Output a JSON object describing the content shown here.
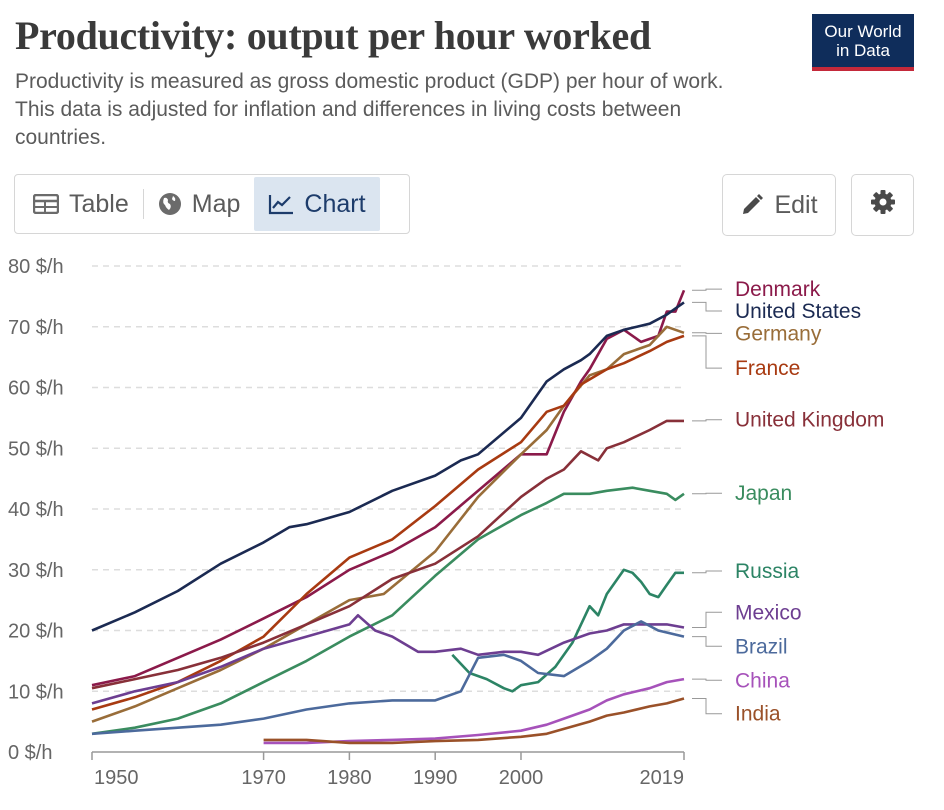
{
  "header": {
    "title": "Productivity: output per hour worked",
    "subtitle": "Productivity is measured as gross domestic product (GDP) per hour of work. This data is adjusted for inflation and differences in living costs between countries.",
    "logo_line1": "Our World",
    "logo_line2": "in Data"
  },
  "tabs": [
    {
      "label": "Table",
      "icon": "table-icon",
      "active": false
    },
    {
      "label": "Map",
      "icon": "globe-icon",
      "active": false
    },
    {
      "label": "Chart",
      "icon": "line-chart-icon",
      "active": true
    }
  ],
  "actions": {
    "edit_label": "Edit",
    "edit_icon": "pencil-icon",
    "settings_icon": "gear-icon"
  },
  "chart_data": {
    "type": "line",
    "ylim": [
      0,
      80
    ],
    "xlim": [
      1950,
      2019
    ],
    "yticks": [
      0,
      10,
      20,
      30,
      40,
      50,
      60,
      70,
      80
    ],
    "ytick_labels": [
      "0 $/h",
      "10 $/h",
      "20 $/h",
      "30 $/h",
      "40 $/h",
      "50 $/h",
      "60 $/h",
      "70 $/h",
      "80 $/h"
    ],
    "xtick_labels": [
      "1950",
      "1970",
      "1980",
      "1990",
      "2000",
      "2019"
    ],
    "xticks": [
      1950,
      1970,
      1980,
      1990,
      2000,
      2019
    ],
    "grid": "horizontal dashed",
    "legend": "line-end labels on right",
    "series": [
      {
        "name": "Denmark",
        "color": "#8b1a4a",
        "label_y": 76.2,
        "points": [
          [
            1950,
            11
          ],
          [
            1955,
            12.5
          ],
          [
            1960,
            15.5
          ],
          [
            1965,
            18.5
          ],
          [
            1970,
            22
          ],
          [
            1975,
            25.5
          ],
          [
            1980,
            30
          ],
          [
            1985,
            33
          ],
          [
            1990,
            37
          ],
          [
            1995,
            43
          ],
          [
            2000,
            49
          ],
          [
            2003,
            49
          ],
          [
            2005,
            56
          ],
          [
            2007,
            61
          ],
          [
            2008,
            63
          ],
          [
            2010,
            68
          ],
          [
            2012,
            69.5
          ],
          [
            2014,
            67.5
          ],
          [
            2016,
            68.5
          ],
          [
            2017,
            72.5
          ],
          [
            2018,
            72.5
          ],
          [
            2019,
            76
          ]
        ]
      },
      {
        "name": "United States",
        "color": "#1b2a52",
        "label_y": 72.6,
        "points": [
          [
            1950,
            20
          ],
          [
            1955,
            23
          ],
          [
            1960,
            26.5
          ],
          [
            1965,
            31
          ],
          [
            1970,
            34.5
          ],
          [
            1973,
            37
          ],
          [
            1975,
            37.5
          ],
          [
            1980,
            39.5
          ],
          [
            1985,
            43
          ],
          [
            1990,
            45.5
          ],
          [
            1993,
            48
          ],
          [
            1995,
            49
          ],
          [
            2000,
            55
          ],
          [
            2003,
            61
          ],
          [
            2005,
            63
          ],
          [
            2007,
            64.5
          ],
          [
            2008,
            65.5
          ],
          [
            2010,
            68.5
          ],
          [
            2012,
            69.5
          ],
          [
            2015,
            70.5
          ],
          [
            2017,
            72
          ],
          [
            2019,
            74
          ]
        ]
      },
      {
        "name": "Germany",
        "color": "#996d39",
        "label_y": 68.9,
        "points": [
          [
            1950,
            5
          ],
          [
            1955,
            7.5
          ],
          [
            1960,
            10.5
          ],
          [
            1965,
            13.5
          ],
          [
            1970,
            17
          ],
          [
            1975,
            21
          ],
          [
            1980,
            25
          ],
          [
            1984,
            26
          ],
          [
            1990,
            33
          ],
          [
            1995,
            42
          ],
          [
            2000,
            49
          ],
          [
            2003,
            53
          ],
          [
            2005,
            57
          ],
          [
            2008,
            62
          ],
          [
            2010,
            63
          ],
          [
            2012,
            65.5
          ],
          [
            2015,
            67
          ],
          [
            2017,
            70
          ],
          [
            2019,
            69
          ]
        ]
      },
      {
        "name": "France",
        "color": "#a83a11",
        "label_y": 63.2,
        "points": [
          [
            1950,
            7
          ],
          [
            1955,
            9
          ],
          [
            1960,
            11.5
          ],
          [
            1965,
            15
          ],
          [
            1970,
            19
          ],
          [
            1975,
            26
          ],
          [
            1980,
            32
          ],
          [
            1985,
            35
          ],
          [
            1990,
            40.5
          ],
          [
            1995,
            46.5
          ],
          [
            2000,
            51
          ],
          [
            2003,
            56
          ],
          [
            2005,
            57
          ],
          [
            2007,
            60.5
          ],
          [
            2010,
            63
          ],
          [
            2012,
            64
          ],
          [
            2015,
            66
          ],
          [
            2017,
            67.5
          ],
          [
            2019,
            68.5
          ]
        ]
      },
      {
        "name": "United Kingdom",
        "color": "#883039",
        "label_y": 54.7,
        "points": [
          [
            1950,
            10.5
          ],
          [
            1955,
            12
          ],
          [
            1960,
            13.5
          ],
          [
            1965,
            15.5
          ],
          [
            1970,
            18
          ],
          [
            1975,
            21
          ],
          [
            1980,
            24
          ],
          [
            1985,
            28.5
          ],
          [
            1990,
            31
          ],
          [
            1995,
            35.5
          ],
          [
            2000,
            42
          ],
          [
            2003,
            45
          ],
          [
            2005,
            46.5
          ],
          [
            2007,
            49.5
          ],
          [
            2009,
            48
          ],
          [
            2010,
            50
          ],
          [
            2012,
            51
          ],
          [
            2015,
            53
          ],
          [
            2017,
            54.5
          ],
          [
            2019,
            54.5
          ]
        ]
      },
      {
        "name": "Japan",
        "color": "#3a8c5f",
        "label_y": 42.6,
        "points": [
          [
            1950,
            3
          ],
          [
            1955,
            4
          ],
          [
            1960,
            5.5
          ],
          [
            1965,
            8
          ],
          [
            1970,
            11.5
          ],
          [
            1975,
            15
          ],
          [
            1980,
            19
          ],
          [
            1985,
            22.5
          ],
          [
            1990,
            29
          ],
          [
            1995,
            35
          ],
          [
            2000,
            39
          ],
          [
            2003,
            41
          ],
          [
            2005,
            42.5
          ],
          [
            2008,
            42.5
          ],
          [
            2010,
            43
          ],
          [
            2013,
            43.5
          ],
          [
            2015,
            43
          ],
          [
            2017,
            42.5
          ],
          [
            2018,
            41.5
          ],
          [
            2019,
            42.5
          ]
        ]
      },
      {
        "name": "Russia",
        "color": "#2c8465",
        "label_y": 29.8,
        "points": [
          [
            1992,
            16
          ],
          [
            1994,
            13
          ],
          [
            1996,
            12
          ],
          [
            1998,
            10.5
          ],
          [
            1999,
            10
          ],
          [
            2000,
            11
          ],
          [
            2002,
            11.5
          ],
          [
            2004,
            14
          ],
          [
            2006,
            18
          ],
          [
            2008,
            24
          ],
          [
            2009,
            22.5
          ],
          [
            2010,
            26
          ],
          [
            2012,
            30
          ],
          [
            2013,
            29.5
          ],
          [
            2014,
            28
          ],
          [
            2015,
            26
          ],
          [
            2016,
            25.5
          ],
          [
            2017,
            27.5
          ],
          [
            2018,
            29.5
          ],
          [
            2019,
            29.5
          ]
        ]
      },
      {
        "name": "Mexico",
        "color": "#6d3e91",
        "label_y": 23.0,
        "points": [
          [
            1950,
            8
          ],
          [
            1955,
            10
          ],
          [
            1960,
            11.5
          ],
          [
            1965,
            14
          ],
          [
            1970,
            17
          ],
          [
            1975,
            19
          ],
          [
            1980,
            21
          ],
          [
            1981,
            22.5
          ],
          [
            1983,
            20
          ],
          [
            1985,
            19
          ],
          [
            1988,
            16.5
          ],
          [
            1990,
            16.5
          ],
          [
            1993,
            17
          ],
          [
            1995,
            16
          ],
          [
            1998,
            16.5
          ],
          [
            2000,
            16.5
          ],
          [
            2002,
            16
          ],
          [
            2005,
            18
          ],
          [
            2008,
            19.5
          ],
          [
            2010,
            20
          ],
          [
            2012,
            21
          ],
          [
            2015,
            21
          ],
          [
            2017,
            21
          ],
          [
            2019,
            20.5
          ]
        ]
      },
      {
        "name": "Brazil",
        "color": "#4c6a9c",
        "label_y": 17.4,
        "points": [
          [
            1950,
            3
          ],
          [
            1955,
            3.5
          ],
          [
            1960,
            4
          ],
          [
            1965,
            4.5
          ],
          [
            1970,
            5.5
          ],
          [
            1975,
            7
          ],
          [
            1980,
            8
          ],
          [
            1985,
            8.5
          ],
          [
            1990,
            8.5
          ],
          [
            1993,
            10
          ],
          [
            1995,
            15.5
          ],
          [
            1998,
            16
          ],
          [
            2000,
            15
          ],
          [
            2002,
            13
          ],
          [
            2005,
            12.5
          ],
          [
            2008,
            15
          ],
          [
            2010,
            17
          ],
          [
            2012,
            20
          ],
          [
            2014,
            21.5
          ],
          [
            2016,
            20
          ],
          [
            2019,
            19
          ]
        ]
      },
      {
        "name": "China",
        "color": "#a652ba",
        "label_y": 11.8,
        "points": [
          [
            1970,
            1.5
          ],
          [
            1975,
            1.5
          ],
          [
            1980,
            1.8
          ],
          [
            1985,
            2
          ],
          [
            1990,
            2.2
          ],
          [
            1995,
            2.8
          ],
          [
            2000,
            3.5
          ],
          [
            2003,
            4.5
          ],
          [
            2005,
            5.5
          ],
          [
            2008,
            7
          ],
          [
            2010,
            8.5
          ],
          [
            2012,
            9.5
          ],
          [
            2015,
            10.5
          ],
          [
            2017,
            11.5
          ],
          [
            2019,
            12
          ]
        ]
      },
      {
        "name": "India",
        "color": "#9a5129",
        "label_y": 6.3,
        "points": [
          [
            1970,
            2
          ],
          [
            1975,
            2
          ],
          [
            1980,
            1.5
          ],
          [
            1985,
            1.5
          ],
          [
            1990,
            1.8
          ],
          [
            1995,
            2
          ],
          [
            2000,
            2.5
          ],
          [
            2003,
            3
          ],
          [
            2005,
            3.8
          ],
          [
            2008,
            5
          ],
          [
            2010,
            6
          ],
          [
            2012,
            6.5
          ],
          [
            2015,
            7.5
          ],
          [
            2017,
            8
          ],
          [
            2019,
            8.8
          ]
        ]
      }
    ]
  }
}
